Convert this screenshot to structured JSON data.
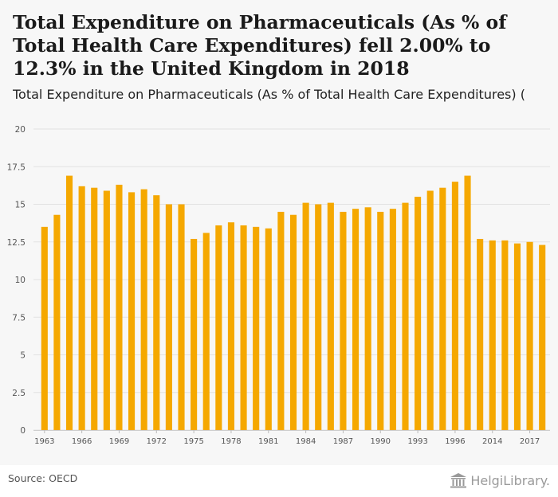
{
  "title": "Total Expenditure on Pharmaceuticals (As % of Total Health Care Expenditures) fell 2.00% to 12.3% in the United Kingdom in 2018",
  "subtitle": "Total Expenditure on Pharmaceuticals (As % of Total Health Care Expenditures) (",
  "source": "Source: OECD",
  "logo_text": "HelgiLibrary.",
  "colors": {
    "bar": "#f5a800",
    "background": "#f7f7f7",
    "grid": "#e2e2e2"
  },
  "chart_data": {
    "type": "bar",
    "title": "Total Expenditure on Pharmaceuticals (As % of Total Health Care Expenditures) (",
    "xlabel": "",
    "ylabel": "",
    "ylim": [
      0,
      20
    ],
    "yticks": [
      "0",
      "2.5",
      "5",
      "7.5",
      "10",
      "12.5",
      "15",
      "17.5",
      "20"
    ],
    "grid": true,
    "categories": [
      "1963",
      "1964",
      "1965",
      "1966",
      "1967",
      "1968",
      "1969",
      "1970",
      "1971",
      "1972",
      "1973",
      "1974",
      "1975",
      "1976",
      "1977",
      "1978",
      "1979",
      "1980",
      "1981",
      "1982",
      "1983",
      "1984",
      "1985",
      "1986",
      "1987",
      "1988",
      "1989",
      "1990",
      "1991",
      "1992",
      "1993",
      "1994",
      "1995",
      "1996",
      "1997",
      "2013",
      "2014",
      "2015",
      "2016",
      "2017",
      "2018"
    ],
    "xtick_labels": [
      "1963",
      "1966",
      "1969",
      "1972",
      "1975",
      "1978",
      "1981",
      "1984",
      "1987",
      "1990",
      "1993",
      "1996",
      "2014",
      "2017"
    ],
    "values": [
      13.5,
      14.3,
      16.9,
      16.2,
      16.1,
      15.9,
      16.3,
      15.8,
      16.0,
      15.6,
      15.0,
      15.0,
      12.7,
      13.1,
      13.6,
      13.8,
      13.6,
      13.5,
      13.4,
      14.5,
      14.3,
      15.1,
      15.0,
      15.1,
      14.5,
      14.7,
      14.8,
      14.5,
      14.7,
      15.1,
      15.5,
      15.9,
      16.1,
      16.5,
      16.9,
      12.7,
      12.6,
      12.6,
      12.4,
      12.5,
      12.3
    ]
  }
}
